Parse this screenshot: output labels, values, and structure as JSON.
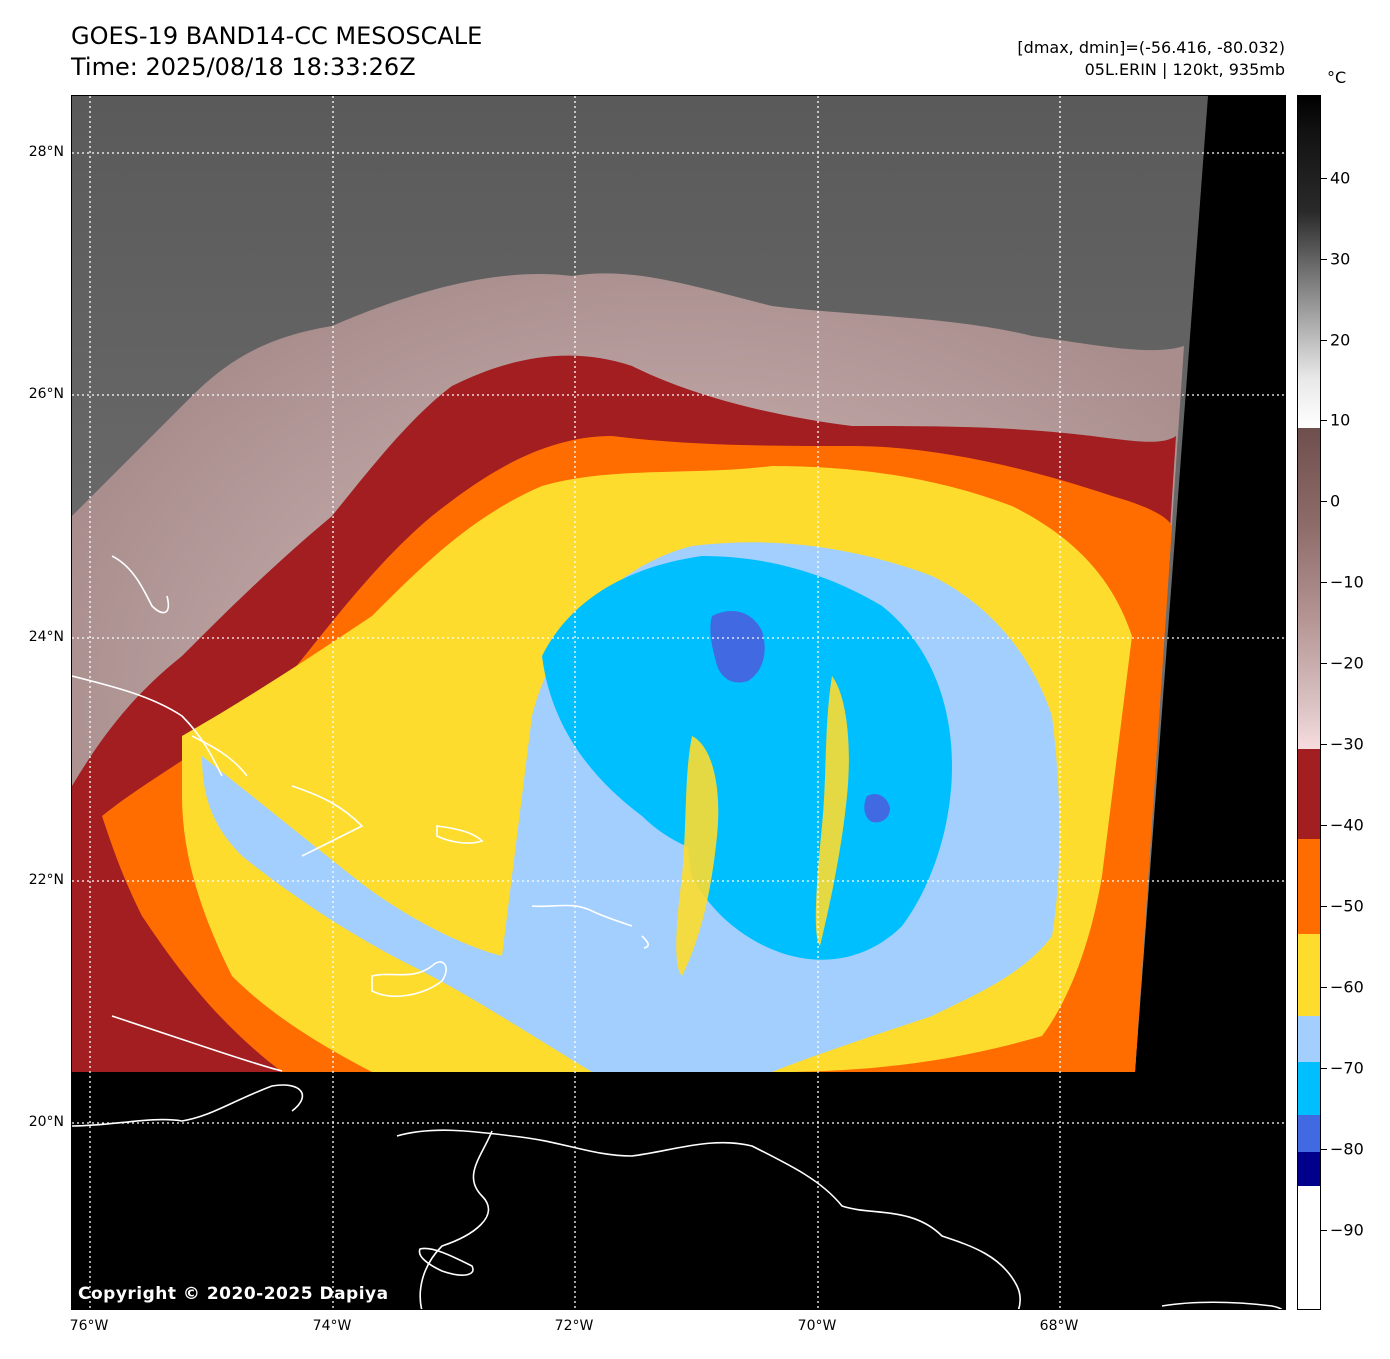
{
  "header": {
    "title_line1": "GOES-19 BAND14-CC MESOSCALE",
    "title_line2": "Time: 2025/08/18 18:33:26Z",
    "range_text": "[dmax, dmin]=(-56.416, -80.032)",
    "storm_text": "05L.ERIN | 120kt, 935mb"
  },
  "map": {
    "lat_labels": [
      "28°N",
      "26°N",
      "24°N",
      "22°N",
      "20°N"
    ],
    "lon_labels": [
      "76°W",
      "74°W",
      "72°W",
      "70°W",
      "68°W"
    ],
    "gridlines": "dotted white",
    "background_no_data": "#000000",
    "coastline_color": "#ffffff"
  },
  "colorbar": {
    "unit": "°C",
    "tick_labels": [
      "40",
      "30",
      "20",
      "10",
      "0",
      "−10",
      "−20",
      "−30",
      "−40",
      "−50",
      "−60",
      "−70",
      "−80",
      "−90"
    ],
    "colors": {
      "cold_white": "#ffffff",
      "navy": "#00008b",
      "royal_blue": "#4169e1",
      "deep_sky_blue": "#00bfff",
      "light_sky_blue": "#a2cffe",
      "gold": "#fddc2e",
      "orange": "#ff6d00",
      "dark_red": "#a21e20",
      "pale_pink": "#f6dcdf",
      "mauve": "#7a5a58"
    }
  },
  "footer": {
    "copyright": "Copyright © 2020-2025 Dapiya"
  }
}
